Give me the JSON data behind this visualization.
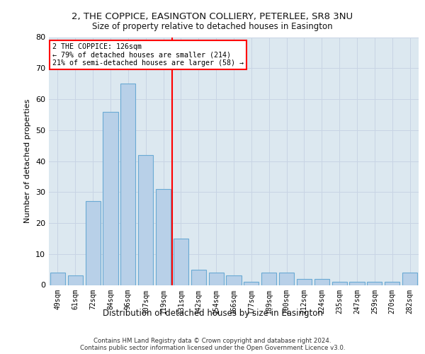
{
  "title1": "2, THE COPPICE, EASINGTON COLLIERY, PETERLEE, SR8 3NU",
  "title2": "Size of property relative to detached houses in Easington",
  "xlabel": "Distribution of detached houses by size in Easington",
  "ylabel": "Number of detached properties",
  "categories": [
    "49sqm",
    "61sqm",
    "72sqm",
    "84sqm",
    "96sqm",
    "107sqm",
    "119sqm",
    "131sqm",
    "142sqm",
    "154sqm",
    "166sqm",
    "177sqm",
    "189sqm",
    "200sqm",
    "212sqm",
    "224sqm",
    "235sqm",
    "247sqm",
    "259sqm",
    "270sqm",
    "282sqm"
  ],
  "values": [
    4,
    3,
    27,
    56,
    65,
    42,
    31,
    15,
    5,
    4,
    3,
    1,
    4,
    4,
    2,
    2,
    1,
    1,
    1,
    1,
    4
  ],
  "bar_color": "#b8d0e8",
  "bar_edge_color": "#6aaad4",
  "vline_color": "red",
  "annotation_line1": "2 THE COPPICE: 126sqm",
  "annotation_line2": "← 79% of detached houses are smaller (214)",
  "annotation_line3": "21% of semi-detached houses are larger (58) →",
  "ylim": [
    0,
    80
  ],
  "yticks": [
    0,
    10,
    20,
    30,
    40,
    50,
    60,
    70,
    80
  ],
  "grid_color": "#c8d4e4",
  "background_color": "#dce8f0",
  "footer1": "Contains HM Land Registry data © Crown copyright and database right 2024.",
  "footer2": "Contains public sector information licensed under the Open Government Licence v3.0."
}
